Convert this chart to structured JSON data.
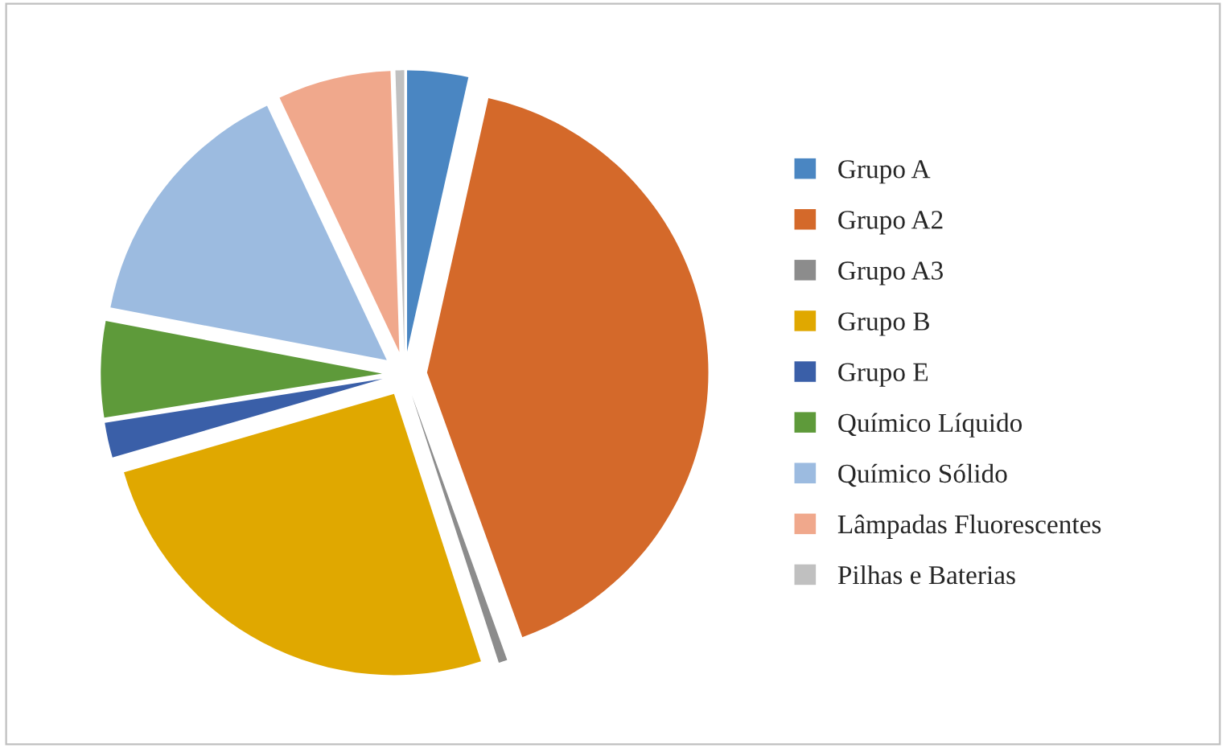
{
  "chart_data": {
    "type": "pie",
    "categories": [
      "Grupo A",
      "Grupo A2",
      "Grupo A3",
      "Grupo B",
      "Grupo E",
      "Químico Líquido",
      "Químico Sólido",
      "Lâmpadas Fluorescentes",
      "Pilhas e Baterias"
    ],
    "values": [
      3.5,
      41,
      0.5,
      25.5,
      2,
      5.5,
      15,
      6.5,
      0.5
    ],
    "colors": [
      "#4a86c2",
      "#d4692a",
      "#8c8c8c",
      "#e0a800",
      "#3a5fa8",
      "#5e9a3a",
      "#9cbbe0",
      "#f0a88c",
      "#c0c0c0"
    ],
    "legend": "right"
  }
}
